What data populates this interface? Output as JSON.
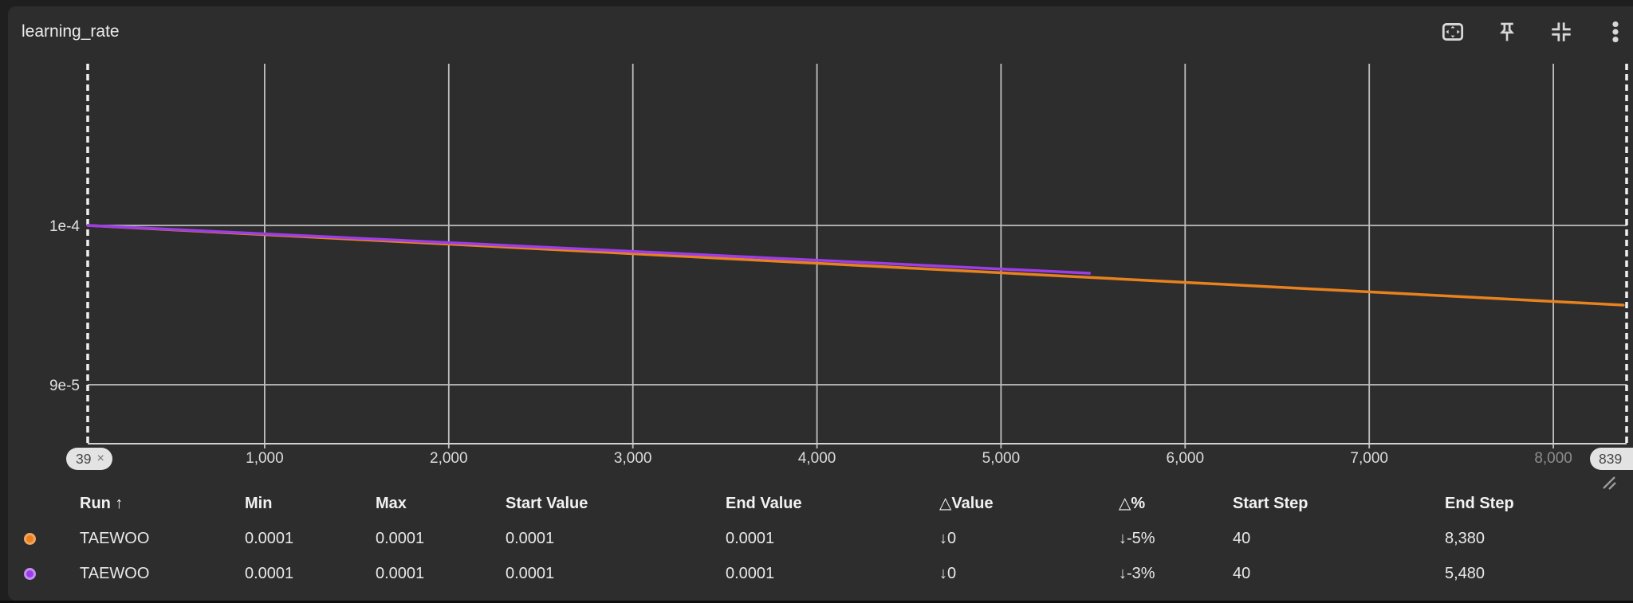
{
  "header": {
    "title": "learning_rate",
    "toolbar_icons": [
      "fit-to-viewport-icon",
      "pin-icon",
      "collapse-icon",
      "kebab-menu-icon"
    ]
  },
  "colors": {
    "panel_background": "#2d2d2e",
    "gridline": "#bfbfbf",
    "orange_series": "#e8821e",
    "purple_series": "#9d3de8",
    "badge_background": "#e3e3e3"
  },
  "chart_data": {
    "type": "line",
    "title": "learning_rate",
    "grid": true,
    "x_axis": {
      "range": [
        39,
        8398
      ],
      "ticks": [
        {
          "step": 1000,
          "label": "1,000",
          "dim": false
        },
        {
          "step": 2000,
          "label": "2,000",
          "dim": false
        },
        {
          "step": 3000,
          "label": "3,000",
          "dim": false
        },
        {
          "step": 4000,
          "label": "4,000",
          "dim": false
        },
        {
          "step": 5000,
          "label": "5,000",
          "dim": false
        },
        {
          "step": 6000,
          "label": "6,000",
          "dim": false
        },
        {
          "step": 7000,
          "label": "7,000",
          "dim": false
        },
        {
          "step": 8000,
          "label": "8,000",
          "dim": true
        }
      ],
      "left_badge": {
        "label": "39",
        "close": "×"
      },
      "right_badge": {
        "label": "839"
      }
    },
    "y_axis": {
      "ticks": [
        {
          "value": 0.0001,
          "label": "1e-4"
        },
        {
          "value": 9e-05,
          "label": "9e-5"
        }
      ]
    },
    "series": [
      {
        "name": "TAEWOO",
        "color": "#e8821e",
        "points": [
          [
            40,
            0.0001
          ],
          [
            8380,
            9.5e-05
          ]
        ]
      },
      {
        "name": "TAEWOO",
        "color": "#9d3de8",
        "points": [
          [
            40,
            0.0001
          ],
          [
            5480,
            9.7e-05
          ]
        ]
      }
    ]
  },
  "table": {
    "columns": [
      "Run ↑",
      "Min",
      "Max",
      "Start Value",
      "End Value",
      "△Value",
      "△%",
      "Start Step",
      "End Step"
    ],
    "rows": [
      {
        "color": "#e8821e",
        "color_border": "#f2a55f",
        "run": "TAEWOO",
        "min": "0.0001",
        "max": "0.0001",
        "start_value": "0.0001",
        "end_value": "0.0001",
        "delta_value": "↓0",
        "delta_pct": "↓-5%",
        "start_step": "40",
        "end_step": "8,380"
      },
      {
        "color": "#9d3de8",
        "color_border": "#c58df2",
        "run": "TAEWOO",
        "min": "0.0001",
        "max": "0.0001",
        "start_value": "0.0001",
        "end_value": "0.0001",
        "delta_value": "↓0",
        "delta_pct": "↓-3%",
        "start_step": "40",
        "end_step": "5,480"
      }
    ]
  }
}
